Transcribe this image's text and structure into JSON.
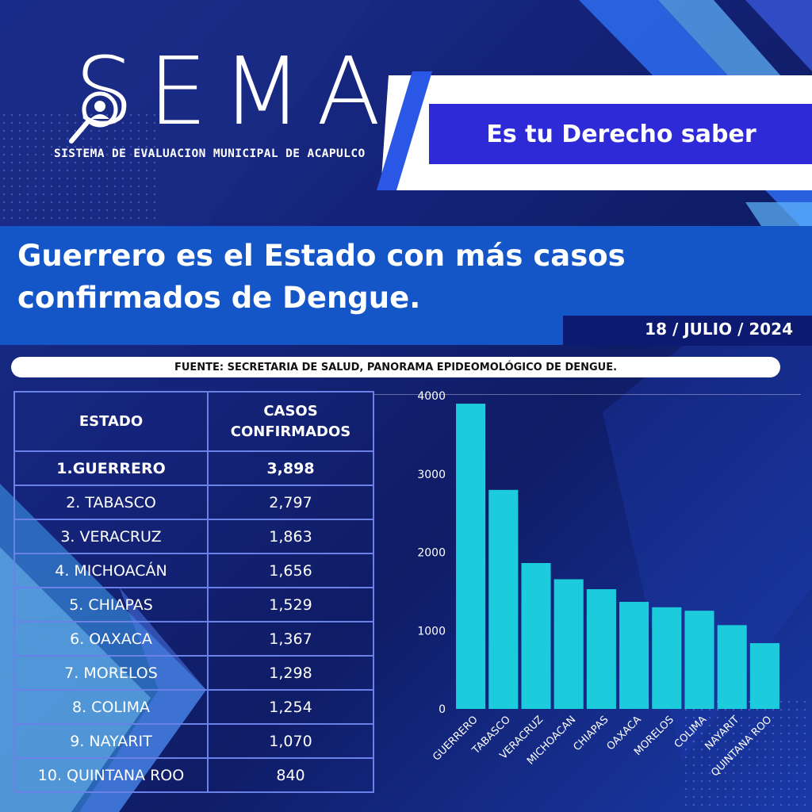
{
  "logo": {
    "wordmark": "SEMA",
    "subtitle": "SISTEMA DE EVALUACION MUNICIPAL DE ACAPULCO",
    "icon": "magnifier-person-icon"
  },
  "slogan": "Es tu Derecho saber",
  "headline": "Guerrero es el Estado con más casos confirmados de Dengue.",
  "date": "18 / JULIO / 2024",
  "source": "FUENTE: SECRETARIA DE SALUD, PANORAMA EPIDEOMOLÓGICO DE DENGUE.",
  "table": {
    "headers": [
      "ESTADO",
      "CASOS CONFIRMADOS"
    ],
    "rows": [
      {
        "estado": "1.GUERRERO",
        "casos": "3,898"
      },
      {
        "estado": "2. TABASCO",
        "casos": "2,797"
      },
      {
        "estado": "3. VERACRUZ",
        "casos": "1,863"
      },
      {
        "estado": "4. MICHOACÁN",
        "casos": "1,656"
      },
      {
        "estado": "5. CHIAPAS",
        "casos": "1,529"
      },
      {
        "estado": "6. OAXACA",
        "casos": "1,367"
      },
      {
        "estado": "7. MORELOS",
        "casos": "1,298"
      },
      {
        "estado": "8. COLIMA",
        "casos": "1,254"
      },
      {
        "estado": "9. NAYARIT",
        "casos": "1,070"
      },
      {
        "estado": "10. QUINTANA ROO",
        "casos": "840"
      }
    ]
  },
  "colors": {
    "bar": "#1ccbdc",
    "background": "#15247a",
    "headline_band": "#1456c8",
    "slogan_box": "#2f2ad8",
    "date_box": "#0c1a72",
    "table_border": "#6a82e8"
  },
  "chart_data": {
    "type": "bar",
    "categories": [
      "GUERRERO",
      "TABASCO",
      "VERACRUZ",
      "MICHOACAN",
      "CHIAPAS",
      "OAXACA",
      "MORELOS",
      "COLIMA",
      "NAYARIT",
      "QUINTANA ROO"
    ],
    "values": [
      3898,
      2797,
      1863,
      1656,
      1529,
      1367,
      1298,
      1254,
      1070,
      840
    ],
    "ylim": [
      0,
      4000
    ],
    "yticks": [
      0,
      1000,
      2000,
      3000,
      4000
    ],
    "title": "",
    "xlabel": "",
    "ylabel": "",
    "grid": false,
    "legend": "none"
  }
}
